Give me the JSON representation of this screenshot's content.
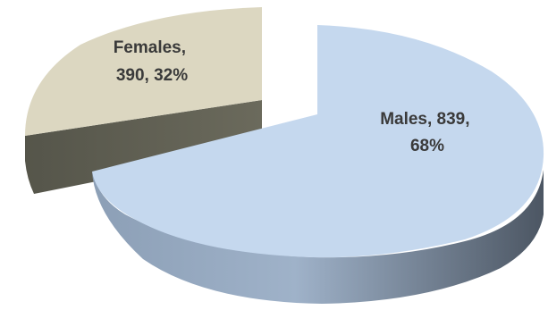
{
  "chart_data": {
    "type": "pie",
    "style": "3d-exploded",
    "title": "",
    "legend": "none",
    "slices": [
      {
        "name": "Males",
        "value": 839,
        "percent": 68,
        "label_lines": [
          "Males, 839,",
          "68%"
        ],
        "color": "#c5d8ee"
      },
      {
        "name": "Females",
        "value": 390,
        "percent": 32,
        "label_lines": [
          "Females,",
          "390, 32%"
        ],
        "color": "#dcd7c1"
      }
    ]
  }
}
